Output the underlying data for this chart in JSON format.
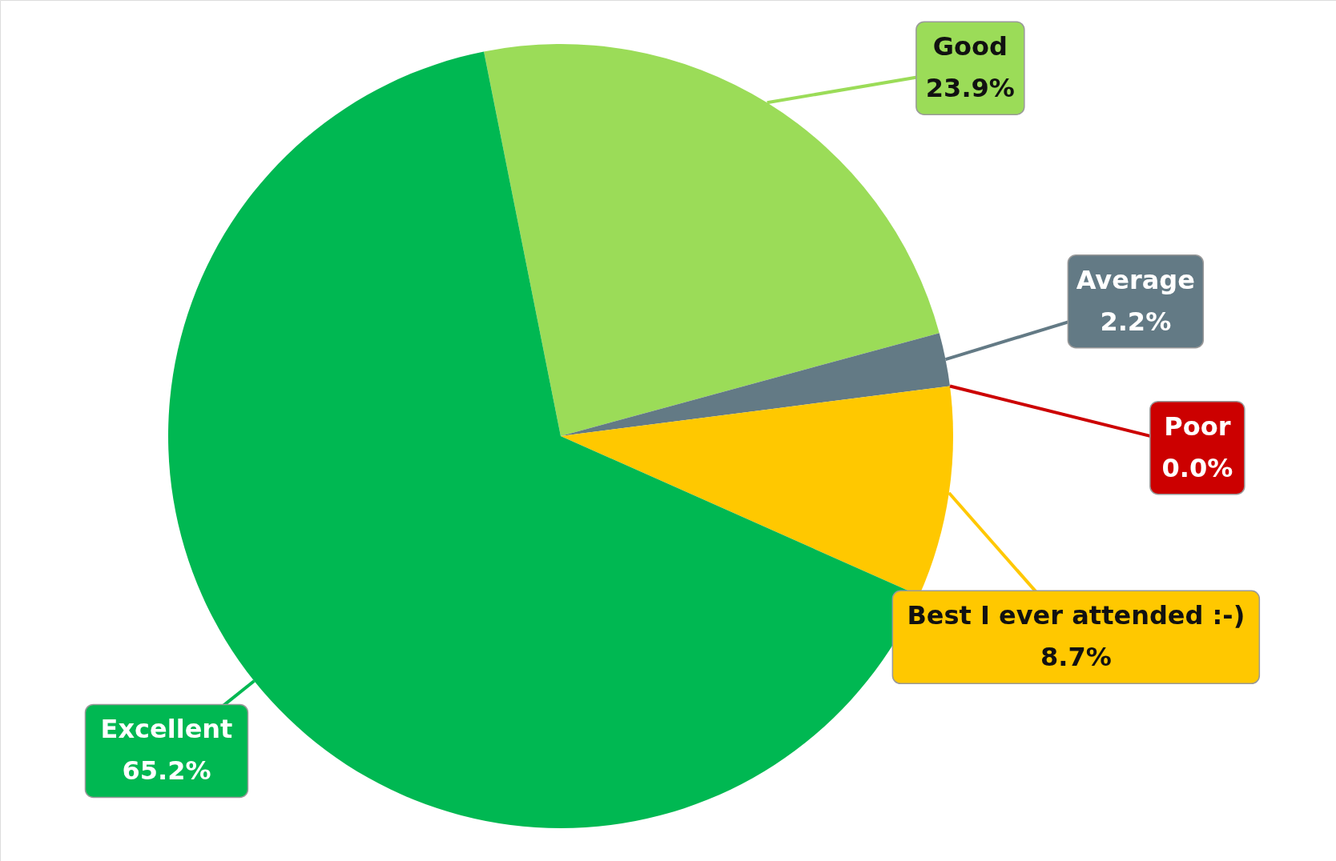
{
  "chart_data": {
    "type": "pie",
    "categories": [
      "Good",
      "Average",
      "Poor",
      "Best I ever attended :-)",
      "Excellent"
    ],
    "values": [
      23.9,
      2.2,
      0.0,
      8.7,
      65.2
    ],
    "value_labels": [
      "23.9%",
      "2.2%",
      "0.0%",
      "8.7%",
      "65.2%"
    ],
    "colors": [
      "#9bdc58",
      "#637a85",
      "#cc0000",
      "#ffc800",
      "#00b852"
    ]
  }
}
